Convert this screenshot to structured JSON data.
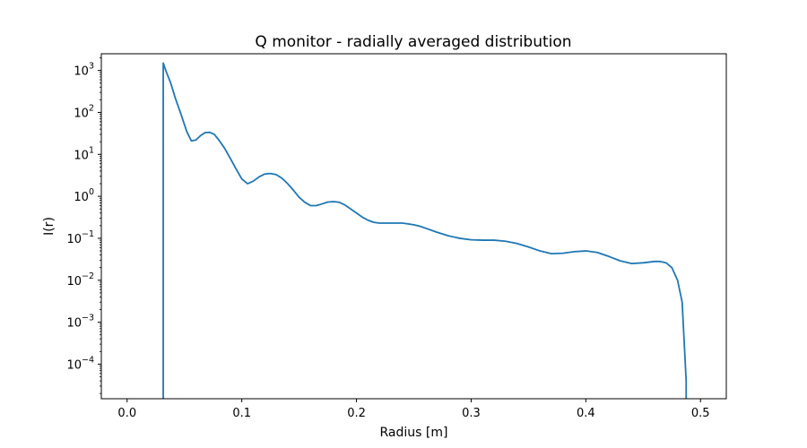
{
  "chart_data": {
    "type": "line",
    "title": "Q monitor - radially averaged distribution",
    "xlabel": "Radius [m]",
    "ylabel": "I(r)",
    "xscale": "linear",
    "yscale": "log",
    "xlim": [
      -0.0225,
      0.5225
    ],
    "ylim": [
      1.5e-05,
      2500
    ],
    "grid": false,
    "x_ticks": [
      0.0,
      0.1,
      0.2,
      0.3,
      0.4,
      0.5
    ],
    "x_tick_labels": [
      "0.0",
      "0.1",
      "0.2",
      "0.3",
      "0.4",
      "0.5"
    ],
    "y_ticks": [
      0.0001,
      0.001,
      0.01,
      0.1,
      1,
      10,
      100,
      1000
    ],
    "y_tick_labels": [
      {
        "base": "10",
        "exp": "−4"
      },
      {
        "base": "10",
        "exp": "−3"
      },
      {
        "base": "10",
        "exp": "−2"
      },
      {
        "base": "10",
        "exp": "−1"
      },
      {
        "base": "10",
        "exp": "0"
      },
      {
        "base": "10",
        "exp": "1"
      },
      {
        "base": "10",
        "exp": "2"
      },
      {
        "base": "10",
        "exp": "3"
      }
    ],
    "series": [
      {
        "color": "#1f77b4",
        "x": [
          0.0315,
          0.0315,
          0.034,
          0.038,
          0.042,
          0.047,
          0.052,
          0.056,
          0.06,
          0.064,
          0.068,
          0.072,
          0.076,
          0.08,
          0.085,
          0.09,
          0.095,
          0.1,
          0.105,
          0.11,
          0.115,
          0.12,
          0.125,
          0.13,
          0.135,
          0.14,
          0.145,
          0.15,
          0.155,
          0.16,
          0.165,
          0.17,
          0.175,
          0.18,
          0.185,
          0.19,
          0.195,
          0.2,
          0.205,
          0.21,
          0.215,
          0.22,
          0.225,
          0.23,
          0.235,
          0.24,
          0.245,
          0.25,
          0.255,
          0.26,
          0.27,
          0.28,
          0.29,
          0.3,
          0.31,
          0.32,
          0.33,
          0.34,
          0.35,
          0.36,
          0.37,
          0.38,
          0.39,
          0.4,
          0.41,
          0.42,
          0.43,
          0.44,
          0.45,
          0.46,
          0.465,
          0.47,
          0.475,
          0.48,
          0.484,
          0.4875,
          0.4875
        ],
        "y": [
          1e-05,
          1500,
          950,
          500,
          220,
          90,
          35,
          21,
          22,
          28,
          33,
          33.5,
          30,
          22,
          14,
          8,
          4.5,
          2.6,
          2.0,
          2.3,
          2.9,
          3.4,
          3.5,
          3.3,
          2.7,
          2.0,
          1.4,
          0.95,
          0.72,
          0.6,
          0.6,
          0.66,
          0.73,
          0.75,
          0.72,
          0.62,
          0.5,
          0.4,
          0.32,
          0.27,
          0.24,
          0.23,
          0.23,
          0.23,
          0.23,
          0.23,
          0.22,
          0.21,
          0.195,
          0.175,
          0.14,
          0.115,
          0.1,
          0.092,
          0.09,
          0.09,
          0.085,
          0.075,
          0.062,
          0.05,
          0.043,
          0.044,
          0.048,
          0.05,
          0.046,
          0.037,
          0.029,
          0.025,
          0.026,
          0.028,
          0.028,
          0.026,
          0.02,
          0.01,
          0.003,
          4e-05,
          1e-05
        ]
      }
    ]
  }
}
